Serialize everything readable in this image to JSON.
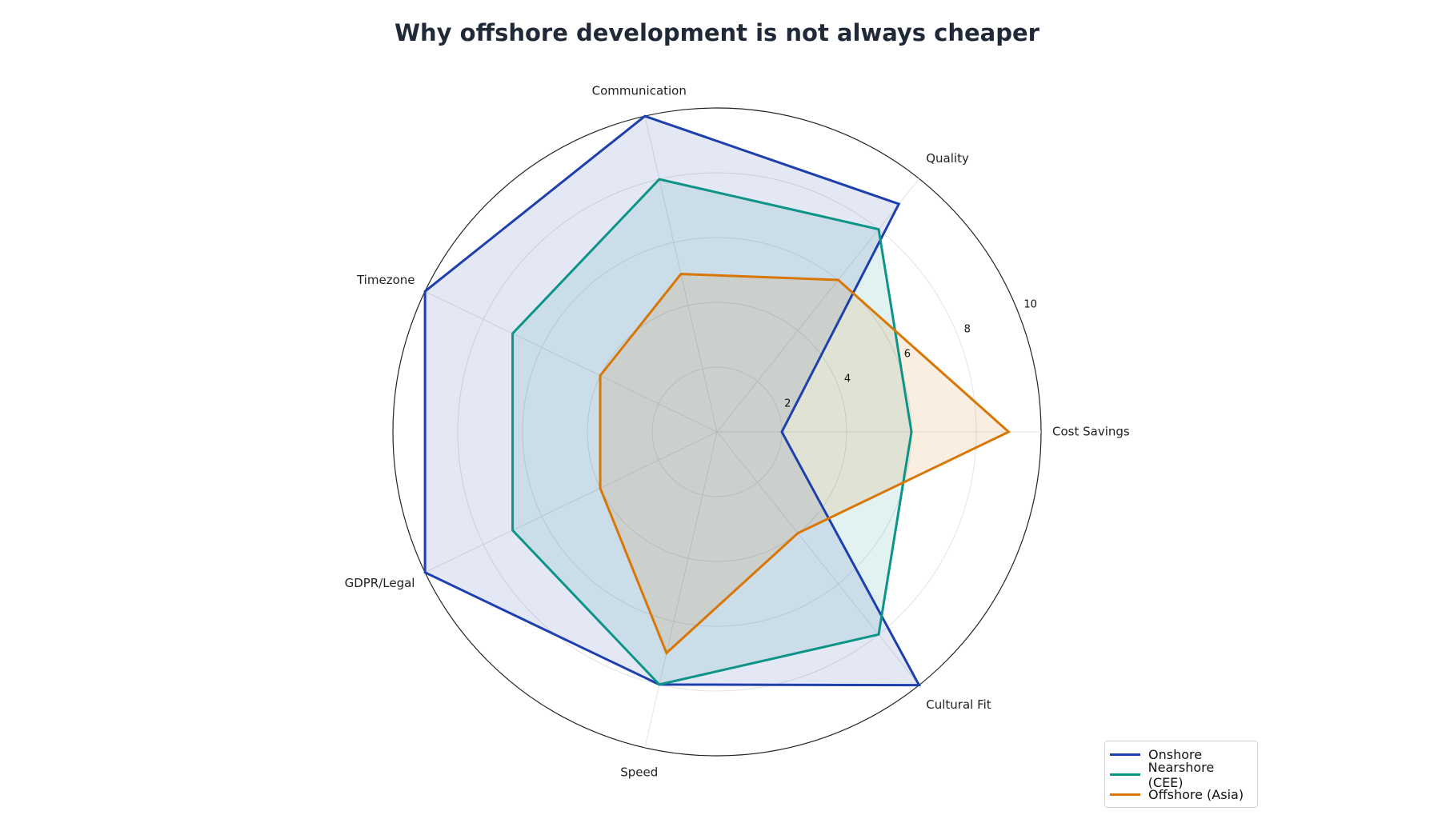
{
  "chart_data": {
    "type": "radar",
    "title": "Why offshore development is not always cheaper",
    "categories": [
      "Cost Savings",
      "Quality",
      "Communication",
      "Timezone",
      "GDPR/Legal",
      "Speed",
      "Cultural Fit"
    ],
    "rlim": [
      0,
      10
    ],
    "radial_ticks": [
      "2",
      "4",
      "6",
      "8",
      "10"
    ],
    "radial_tick_values": [
      2,
      4,
      6,
      8,
      10
    ],
    "grid": true,
    "legend_position": "bottom-right",
    "series": [
      {
        "name": "Onshore",
        "color": "#1e40af",
        "values": [
          2,
          9,
          10,
          10,
          10,
          8,
          10
        ]
      },
      {
        "name": "Nearshore (CEE)",
        "color": "#0d9488",
        "values": [
          6,
          8,
          8,
          7,
          7,
          8,
          8
        ]
      },
      {
        "name": "Offshore (Asia)",
        "color": "#d97706",
        "values": [
          9,
          6,
          5,
          4,
          4,
          7,
          4
        ]
      }
    ]
  }
}
